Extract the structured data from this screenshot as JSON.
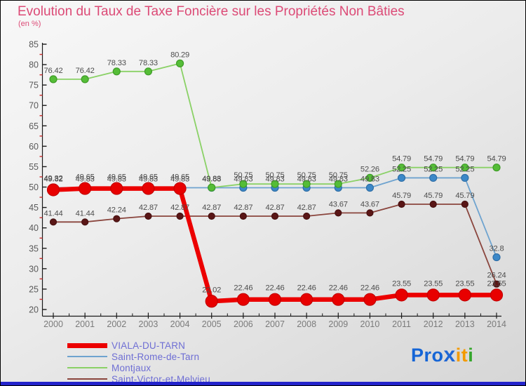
{
  "title": "Evolution du Taux de Taxe Foncière sur les Propriétés Non Bâties",
  "subtitle": "(en %)",
  "chart_data": {
    "type": "line",
    "x": [
      2000,
      2001,
      2002,
      2003,
      2004,
      2005,
      2006,
      2007,
      2008,
      2009,
      2010,
      2011,
      2012,
      2013,
      2014
    ],
    "ylim": [
      20,
      85
    ],
    "ytick_step": 5,
    "grid": false,
    "legend_position": "bottom-left",
    "series": [
      {
        "name": "VIALA-DU-TARN",
        "line_color": "#ec0000",
        "marker_color": "#e80000",
        "marker_edge": "#c40000",
        "line_width": 6.5,
        "marker_radius": 8.5,
        "values": [
          49.32,
          49.65,
          49.65,
          49.65,
          49.65,
          22.02,
          22.46,
          22.46,
          22.46,
          22.46,
          22.46,
          23.55,
          23.55,
          23.55,
          23.55
        ]
      },
      {
        "name": "Saint-Rome-de-Tarn",
        "line_color": "#6ea3cf",
        "marker_color": "#3c88c8",
        "marker_edge": "#2e6ea6",
        "line_width": 1.8,
        "marker_radius": 5,
        "values": [
          49.82,
          49.83,
          49.83,
          49.83,
          49.83,
          49.83,
          49.83,
          49.83,
          49.83,
          49.83,
          49.83,
          52.25,
          52.25,
          52.25,
          32.8
        ]
      },
      {
        "name": "Montjaux",
        "line_color": "#8ad166",
        "marker_color": "#55bd37",
        "marker_edge": "#3f9c28",
        "line_width": 1.8,
        "marker_radius": 5,
        "values": [
          76.42,
          76.42,
          78.33,
          78.33,
          80.29,
          49.88,
          50.75,
          50.75,
          50.75,
          50.75,
          52.26,
          54.79,
          54.79,
          54.79,
          54.79
        ]
      },
      {
        "name": "Saint-Victor-et-Melvieu",
        "line_color": "#8a453d",
        "marker_color": "#5a1616",
        "marker_edge": "#471010",
        "line_width": 1.8,
        "marker_radius": 4.5,
        "values": [
          41.44,
          41.44,
          42.24,
          42.87,
          42.87,
          42.87,
          42.87,
          42.87,
          42.87,
          43.67,
          43.67,
          45.79,
          45.79,
          45.79,
          26.24
        ]
      }
    ],
    "colors": {
      "value_label": "#4e4e4e",
      "y_tick_label": "#5a5a5a",
      "x_tick_label": "#7b7b7b",
      "axis": "#1a1a1a",
      "minor_tick": "#cc2a2a"
    }
  },
  "legend": {
    "items": [
      "VIALA-DU-TARN",
      "Saint-Rome-de-Tarn",
      "Montjaux",
      "Saint-Victor-et-Melvieu"
    ]
  },
  "logo": {
    "letters": [
      {
        "ch": "P",
        "color": "#1565d6",
        "x": false
      },
      {
        "ch": "r",
        "color": "#1565d6",
        "x": false
      },
      {
        "ch": "o",
        "color": "#1565d6",
        "x": false
      },
      {
        "ch": "x",
        "color": "#1f66d4",
        "x": true
      },
      {
        "ch": "i",
        "color": "#f49a00",
        "x": false
      },
      {
        "ch": "t",
        "color": "#f49a00",
        "x": false
      },
      {
        "ch": "i",
        "color": "#35a62c",
        "x": false
      }
    ]
  }
}
